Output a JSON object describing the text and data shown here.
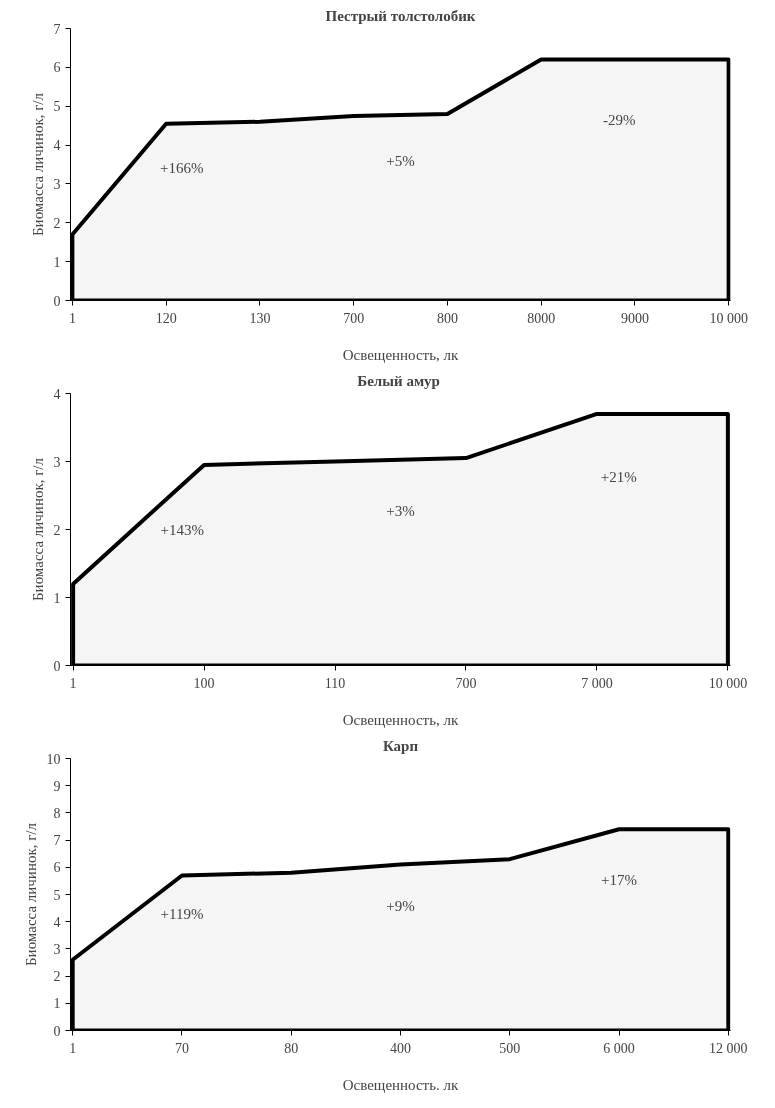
{
  "chart_data": [
    {
      "type": "area",
      "title": "Пестрый толстолобик",
      "xlabel": "Освещенность, лк",
      "ylabel": "Биомасса личинок, г/л",
      "categories": [
        "1",
        "120",
        "130",
        "700",
        "800",
        "8000",
        "9000",
        "10 000"
      ],
      "series": [
        {
          "color": "#000000",
          "values": [
            1.7,
            4.55,
            4.6,
            4.75,
            4.8,
            6.2,
            6.2,
            6.2
          ]
        }
      ],
      "ylim": [
        0,
        7
      ],
      "yticks": [
        0,
        1,
        2,
        3,
        4,
        5,
        6,
        7
      ],
      "grid": false,
      "annotations": [
        "+166%",
        "+5%",
        "-29%"
      ]
    },
    {
      "type": "area",
      "title": "Белый  амур",
      "xlabel": "Освещенность, лк",
      "ylabel": "Биомасса личинок, г/л",
      "categories": [
        "1",
        "100",
        "110",
        "700",
        "7 000",
        "10 000"
      ],
      "series": [
        {
          "color": "#000000",
          "values": [
            1.2,
            2.95,
            3.0,
            3.05,
            3.7,
            3.7
          ]
        }
      ],
      "ylim": [
        0,
        4
      ],
      "yticks": [
        0,
        1,
        2,
        3,
        4
      ],
      "grid": false,
      "annotations": [
        "+143%",
        "+3%",
        "+21%"
      ]
    },
    {
      "type": "area",
      "title": "Карп",
      "xlabel": "Освещенность. лк",
      "ylabel": "Биомасса личинок, г/л",
      "categories": [
        "1",
        "70",
        "80",
        "400",
        "500",
        "6 000",
        "12 000"
      ],
      "series": [
        {
          "color": "#000000",
          "values": [
            2.6,
            5.7,
            5.8,
            6.1,
            6.3,
            7.4,
            7.4
          ]
        }
      ],
      "ylim": [
        0,
        10
      ],
      "yticks": [
        0,
        1,
        2,
        3,
        4,
        5,
        6,
        7,
        8,
        9,
        10
      ],
      "grid": false,
      "annotations": [
        "+119%",
        "+9%",
        "+17%"
      ]
    }
  ]
}
